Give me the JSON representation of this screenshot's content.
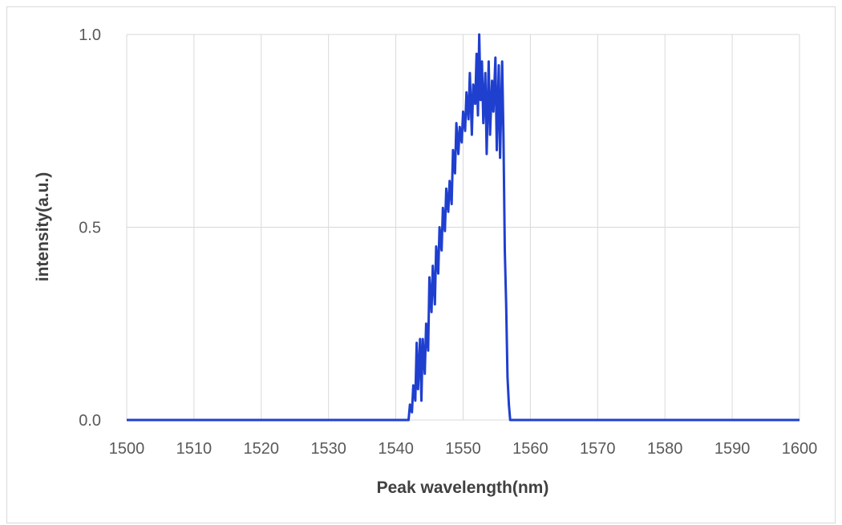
{
  "chart_data": {
    "type": "line",
    "title": "",
    "xlabel": "Peak wavelength(nm)",
    "ylabel": "intensity(a.u.)",
    "xlim": [
      1500,
      1600
    ],
    "ylim": [
      0,
      1.0
    ],
    "x_ticks": [
      "1500",
      "1510",
      "1520",
      "1530",
      "1540",
      "1550",
      "1560",
      "1570",
      "1580",
      "1590",
      "1600"
    ],
    "y_ticks": [
      "0.0",
      "0.5",
      "1.0"
    ],
    "grid": true,
    "legend": "none",
    "series": [
      {
        "color": "#1f3fcf",
        "x": [
          1500,
          1541.9,
          1542.1,
          1542.4,
          1542.6,
          1542.9,
          1543.1,
          1543.3,
          1543.6,
          1543.8,
          1544.0,
          1544.3,
          1544.5,
          1544.8,
          1545.0,
          1545.3,
          1545.5,
          1545.8,
          1546.0,
          1546.3,
          1546.5,
          1546.8,
          1547.0,
          1547.3,
          1547.5,
          1547.8,
          1548.0,
          1548.3,
          1548.5,
          1548.8,
          1549.0,
          1549.3,
          1549.5,
          1549.8,
          1550.0,
          1550.3,
          1550.5,
          1550.8,
          1551.0,
          1551.3,
          1551.5,
          1551.8,
          1552.0,
          1552.2,
          1552.4,
          1552.6,
          1552.8,
          1553.0,
          1553.3,
          1553.5,
          1553.8,
          1554.0,
          1554.3,
          1554.5,
          1554.8,
          1555.0,
          1555.3,
          1555.5,
          1555.8,
          1556.0,
          1556.2,
          1556.4,
          1556.6,
          1556.8,
          1557.0,
          1557.2,
          1600
        ],
        "y": [
          0,
          0,
          0.04,
          0.02,
          0.09,
          0.05,
          0.2,
          0.08,
          0.21,
          0.05,
          0.21,
          0.12,
          0.25,
          0.18,
          0.37,
          0.28,
          0.4,
          0.3,
          0.45,
          0.38,
          0.5,
          0.44,
          0.55,
          0.49,
          0.6,
          0.54,
          0.62,
          0.56,
          0.7,
          0.64,
          0.77,
          0.69,
          0.76,
          0.72,
          0.8,
          0.75,
          0.85,
          0.78,
          0.9,
          0.74,
          0.87,
          0.82,
          0.95,
          0.79,
          1.0,
          0.83,
          0.93,
          0.77,
          0.9,
          0.69,
          0.93,
          0.74,
          0.88,
          0.8,
          0.94,
          0.7,
          0.92,
          0.68,
          0.93,
          0.74,
          0.44,
          0.3,
          0.11,
          0.04,
          0.0,
          0,
          0
        ]
      }
    ]
  }
}
